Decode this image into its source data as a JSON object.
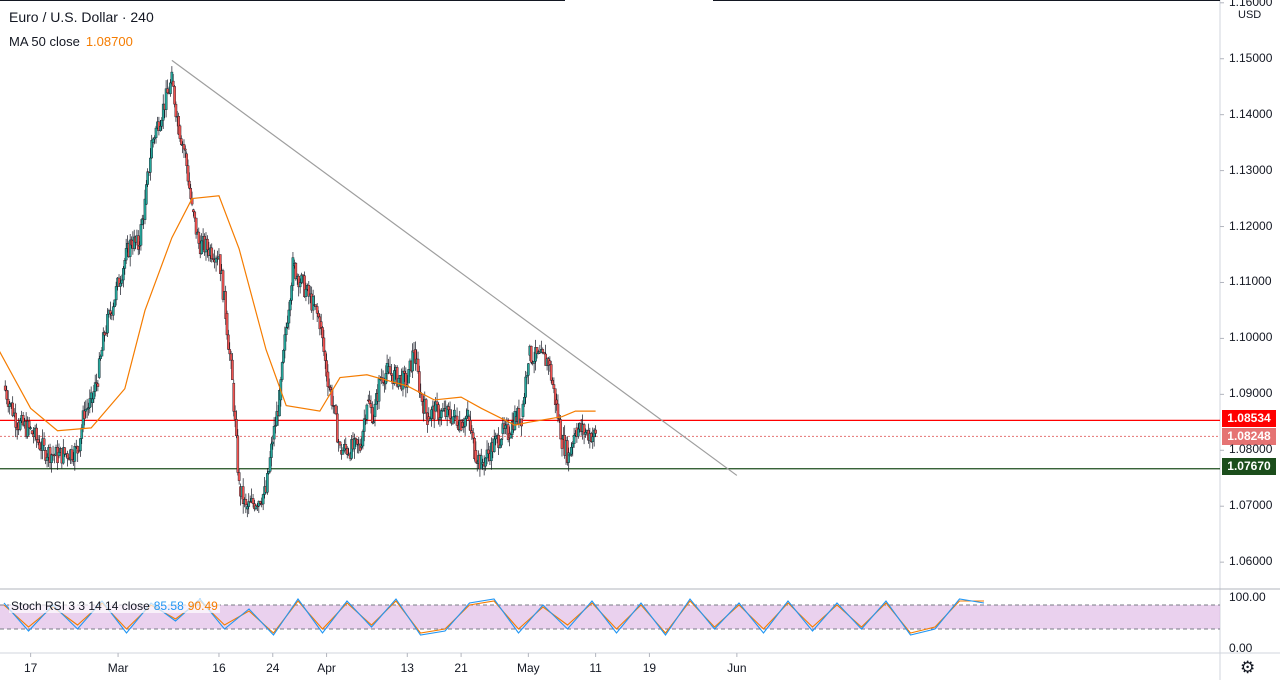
{
  "header": {
    "title": "Euro / U.S. Dollar · 240",
    "ma_label": "MA 50 close",
    "ma_value": "1.08700",
    "currency": "USD"
  },
  "stoch": {
    "label": "Stoch RSI 3 3 14 14 close",
    "k_value": "85.58",
    "d_value": "90.49",
    "levels": [
      "100.00",
      "0.00"
    ]
  },
  "price_tags": {
    "resistance": "1.08534",
    "current": "1.08248",
    "support": "1.07670"
  },
  "colors": {
    "up": "#26a69a",
    "down": "#ef5350",
    "ma": "#f57c00",
    "resistance": "#ff0000",
    "support": "#1b4d1b",
    "current": "#e57373",
    "trendline": "#9e9e9e",
    "stoch_k": "#2196f3",
    "stoch_d": "#f57c00",
    "stoch_band": "#e1bee7"
  },
  "chart_data": {
    "type": "candlestick",
    "instrument": "Euro / U.S. Dollar",
    "timeframe": "240",
    "y_axis": {
      "range": [
        1.0552,
        1.1605
      ],
      "ticks": [
        "1.16000",
        "1.15000",
        "1.14000",
        "1.13000",
        "1.12000",
        "1.11000",
        "1.10000",
        "1.09000",
        "1.08000",
        "1.07000",
        "1.06000"
      ]
    },
    "x_axis": {
      "ticks": [
        "17",
        "Mar",
        "16",
        "24",
        "Apr",
        "13",
        "21",
        "May",
        "11",
        "19",
        "Jun"
      ]
    },
    "horizontal_lines": [
      {
        "value": 1.08534,
        "label": "1.08534"
      },
      {
        "value": 1.0767,
        "label": "1.07670"
      },
      {
        "value": 1.08248,
        "label": "1.08248"
      }
    ],
    "trendline": {
      "from": [
        "Mar 9",
        1.1497
      ],
      "to": [
        "Jun 1",
        1.0755
      ]
    },
    "close_series": [
      [
        "Feb 13",
        1.0915
      ],
      [
        "Feb 15",
        1.085
      ],
      [
        "Feb 17",
        1.0835
      ],
      [
        "Feb 19",
        1.08
      ],
      [
        "Feb 21",
        1.079
      ],
      [
        "Feb 24",
        1.08
      ],
      [
        "Feb 25",
        1.087
      ],
      [
        "Feb 26",
        1.0885
      ],
      [
        "Feb 27",
        1.093
      ],
      [
        "Feb 28",
        1.101
      ],
      [
        "Mar 2",
        1.114
      ],
      [
        "Mar 3",
        1.1175
      ],
      [
        "Mar 4",
        1.1165
      ],
      [
        "Mar 5",
        1.124
      ],
      [
        "Mar 6",
        1.135
      ],
      [
        "Mar 9",
        1.146
      ],
      [
        "Mar 10",
        1.138
      ],
      [
        "Mar 11",
        1.133
      ],
      [
        "Mar 12",
        1.123
      ],
      [
        "Mar 13",
        1.117
      ],
      [
        "Mar 16",
        1.115
      ],
      [
        "Mar 17",
        1.1045
      ],
      [
        "Mar 18",
        1.092
      ],
      [
        "Mar 19",
        1.0735
      ],
      [
        "Mar 20",
        1.0695
      ],
      [
        "Mar 23",
        1.0725
      ],
      [
        "Mar 24",
        1.082
      ],
      [
        "Mar 25",
        1.089
      ],
      [
        "Mar 26",
        1.102
      ],
      [
        "Mar 27",
        1.113
      ],
      [
        "Mar 30",
        1.106
      ],
      [
        "Mar 31",
        1.103
      ],
      [
        "Apr 1",
        1.094
      ],
      [
        "Apr 2",
        1.088
      ],
      [
        "Apr 3",
        1.08
      ],
      [
        "Apr 6",
        1.0805
      ],
      [
        "Apr 7",
        1.089
      ],
      [
        "Apr 8",
        1.086
      ],
      [
        "Apr 9",
        1.093
      ],
      [
        "Apr 10",
        1.094
      ],
      [
        "Apr 13",
        1.092
      ],
      [
        "Apr 14",
        1.098
      ],
      [
        "Apr 15",
        1.09
      ],
      [
        "Apr 16",
        1.086
      ],
      [
        "Apr 17",
        1.087
      ],
      [
        "Apr 20",
        1.086
      ],
      [
        "Apr 21",
        1.085
      ],
      [
        "Apr 22",
        1.086
      ],
      [
        "Apr 23",
        1.08
      ],
      [
        "Apr 24",
        1.0775
      ],
      [
        "Apr 27",
        1.083
      ],
      [
        "Apr 28",
        1.083
      ],
      [
        "Apr 29",
        1.086
      ],
      [
        "Apr 30",
        1.086
      ],
      [
        "May 1",
        1.097
      ],
      [
        "May 4",
        1.096
      ],
      [
        "May 5",
        1.089
      ],
      [
        "May 6",
        1.082
      ],
      [
        "May 7",
        1.079
      ],
      [
        "May 8",
        1.084
      ],
      [
        "May 11",
        1.0825
      ]
    ],
    "ma_series": [
      [
        "Feb 12",
        1.0985
      ],
      [
        "Feb 17",
        1.0875
      ],
      [
        "Feb 21",
        1.0835
      ],
      [
        "Feb 26",
        1.084
      ],
      [
        "Mar 2",
        1.091
      ],
      [
        "Mar 5",
        1.105
      ],
      [
        "Mar 9",
        1.118
      ],
      [
        "Mar 12",
        1.125
      ],
      [
        "Mar 16",
        1.1255
      ],
      [
        "Mar 19",
        1.116
      ],
      [
        "Mar 23",
        1.098
      ],
      [
        "Mar 26",
        1.088
      ],
      [
        "Mar 31",
        1.087
      ],
      [
        "Apr 3",
        1.093
      ],
      [
        "Apr 7",
        1.0935
      ],
      [
        "Apr 13",
        1.0915
      ],
      [
        "Apr 17",
        1.089
      ],
      [
        "Apr 21",
        1.0895
      ],
      [
        "Apr 24",
        1.0875
      ],
      [
        "Apr 29",
        1.0845
      ],
      [
        "May 1",
        1.085
      ],
      [
        "May 6",
        1.086
      ],
      [
        "May 8",
        1.087
      ],
      [
        "May 11",
        1.087
      ]
    ],
    "stoch_series_k": [
      85,
      15,
      80,
      20,
      90,
      10,
      85,
      40,
      95,
      20,
      70,
      5,
      95,
      10,
      90,
      25,
      95,
      5,
      15,
      85,
      95,
      10,
      80,
      20,
      90,
      10,
      85,
      5,
      95,
      20,
      85,
      10,
      90,
      15,
      85,
      20,
      90,
      5,
      20,
      95,
      85
    ],
    "stoch_series_d": [
      80,
      25,
      75,
      30,
      85,
      20,
      80,
      45,
      90,
      30,
      65,
      10,
      90,
      20,
      85,
      30,
      90,
      10,
      20,
      80,
      90,
      20,
      75,
      30,
      85,
      20,
      80,
      10,
      90,
      25,
      80,
      20,
      85,
      25,
      80,
      25,
      85,
      10,
      25,
      90,
      90
    ]
  }
}
